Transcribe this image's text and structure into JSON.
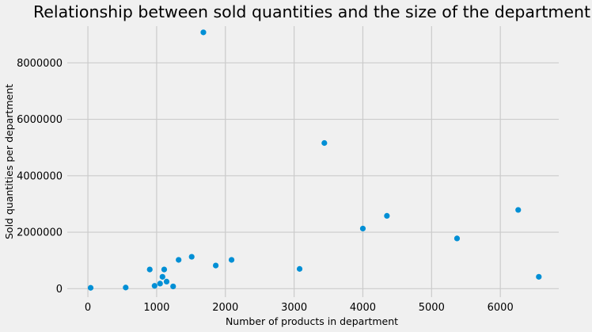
{
  "chart_data": {
    "type": "scatter",
    "title": "Relationship between sold quantities and the size of the department",
    "xlabel": "Number of products in department",
    "ylabel": "Sold quantities per department",
    "xlim": [
      -300,
      6850
    ],
    "ylim": [
      -300000,
      9300000
    ],
    "xticks": [
      0,
      1000,
      2000,
      3000,
      4000,
      5000,
      6000
    ],
    "yticks": [
      0,
      2000000,
      4000000,
      6000000,
      8000000
    ],
    "xtick_labels": [
      "0",
      "1000",
      "2000",
      "3000",
      "4000",
      "5000",
      "6000"
    ],
    "ytick_labels": [
      "0",
      "2000000",
      "4000000",
      "6000000",
      "8000000"
    ],
    "grid": true,
    "color": "#008fd5",
    "points": [
      {
        "x": 40,
        "y": 30000
      },
      {
        "x": 550,
        "y": 40000
      },
      {
        "x": 900,
        "y": 680000
      },
      {
        "x": 970,
        "y": 100000
      },
      {
        "x": 1050,
        "y": 180000
      },
      {
        "x": 1085,
        "y": 420000
      },
      {
        "x": 1110,
        "y": 680000
      },
      {
        "x": 1145,
        "y": 250000
      },
      {
        "x": 1240,
        "y": 80000
      },
      {
        "x": 1320,
        "y": 1020000
      },
      {
        "x": 1510,
        "y": 1130000
      },
      {
        "x": 1680,
        "y": 9080000
      },
      {
        "x": 1860,
        "y": 820000
      },
      {
        "x": 2090,
        "y": 1020000
      },
      {
        "x": 3080,
        "y": 700000
      },
      {
        "x": 3440,
        "y": 5160000
      },
      {
        "x": 4000,
        "y": 2130000
      },
      {
        "x": 4350,
        "y": 2580000
      },
      {
        "x": 5370,
        "y": 1780000
      },
      {
        "x": 6260,
        "y": 2790000
      },
      {
        "x": 6560,
        "y": 420000
      }
    ]
  }
}
